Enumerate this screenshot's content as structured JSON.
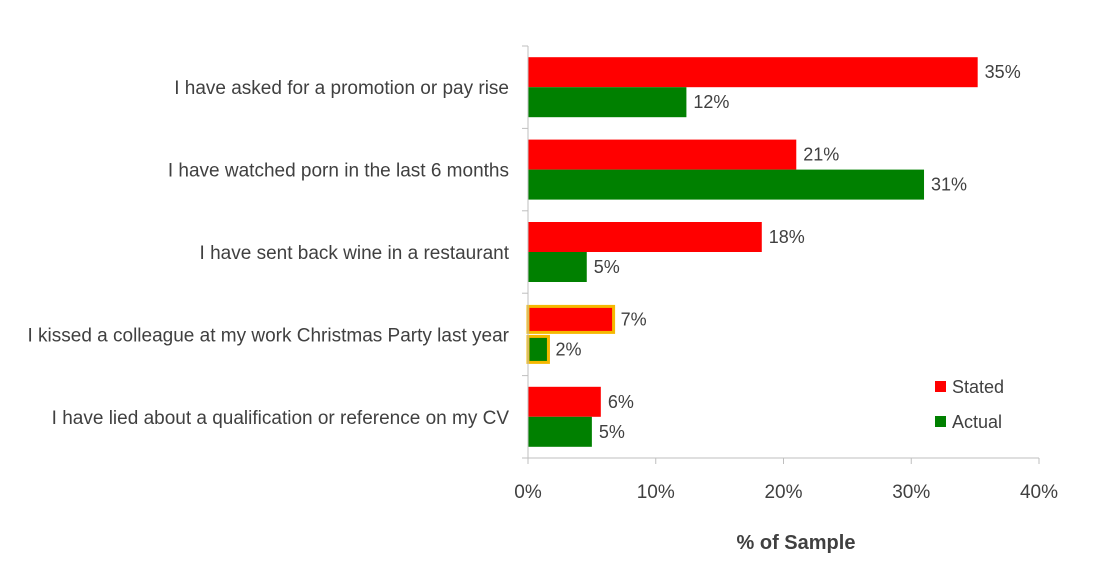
{
  "chart_data": {
    "type": "bar",
    "orientation": "horizontal",
    "categories": [
      "I have asked for a promotion or pay rise",
      "I have watched porn in the last 6 months",
      "I have sent back wine in a restaurant",
      "I kissed a colleague at my work Christmas Party last year",
      "I have lied about a qualification or reference on my CV"
    ],
    "series": [
      {
        "name": "Stated",
        "color": "#ff0000",
        "values": [
          35.2,
          21.0,
          18.3,
          6.7,
          5.7
        ],
        "labels": [
          "35%",
          "21%",
          "18%",
          "7%",
          "6%"
        ]
      },
      {
        "name": "Actual",
        "color": "#008000",
        "values": [
          12.4,
          31.0,
          4.6,
          1.6,
          5.0
        ],
        "labels": [
          "12%",
          "31%",
          "5%",
          "2%",
          "5%"
        ]
      }
    ],
    "highlighted_category_index": 3,
    "highlight_color": "#f5b800",
    "xlabel": "% of Sample",
    "xlim": [
      0,
      40
    ],
    "xticks": [
      0,
      10,
      20,
      30,
      40
    ],
    "xtick_labels": [
      "0%",
      "10%",
      "20%",
      "30%",
      "40%"
    ],
    "grid": false,
    "legend_position": "right"
  }
}
